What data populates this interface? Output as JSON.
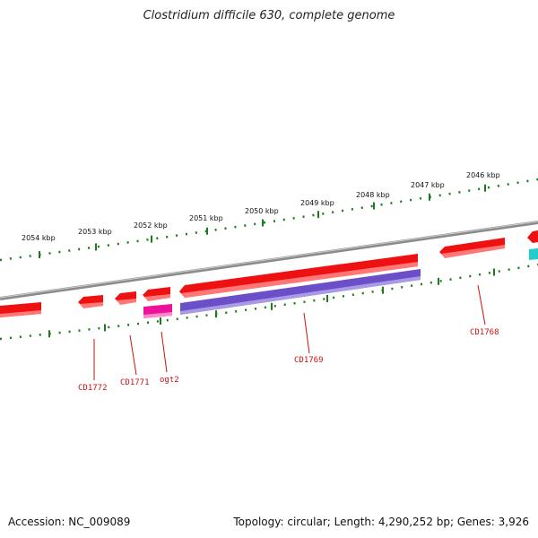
{
  "title": "Clostridium difficile 630, complete genome",
  "accession": "Accession: NC_009089",
  "summary": "Topology: circular; Length: 4,290,252 bp; Genes: 3,926",
  "scale_ticks": [
    {
      "label": "2054 kbp"
    },
    {
      "label": "2053 kbp"
    },
    {
      "label": "2052 kbp"
    },
    {
      "label": "2051 kbp"
    },
    {
      "label": "2050 kbp"
    },
    {
      "label": "2049 kbp"
    },
    {
      "label": "2048 kbp"
    },
    {
      "label": "2047 kbp"
    },
    {
      "label": "2046 kbp"
    }
  ],
  "gene_labels": [
    {
      "name": "CD1772"
    },
    {
      "name": "CD1771"
    },
    {
      "name": "ogt2"
    },
    {
      "name": "CD1769"
    },
    {
      "name": "CD1768"
    }
  ],
  "colors": {
    "backbone": "#8a8a8a",
    "cds": "#ee1111",
    "trna": "#ee1199",
    "other": "#6a4fc8",
    "misc": "#22cccc",
    "ticks": "#1f7a1f",
    "label": "#cc1111"
  }
}
